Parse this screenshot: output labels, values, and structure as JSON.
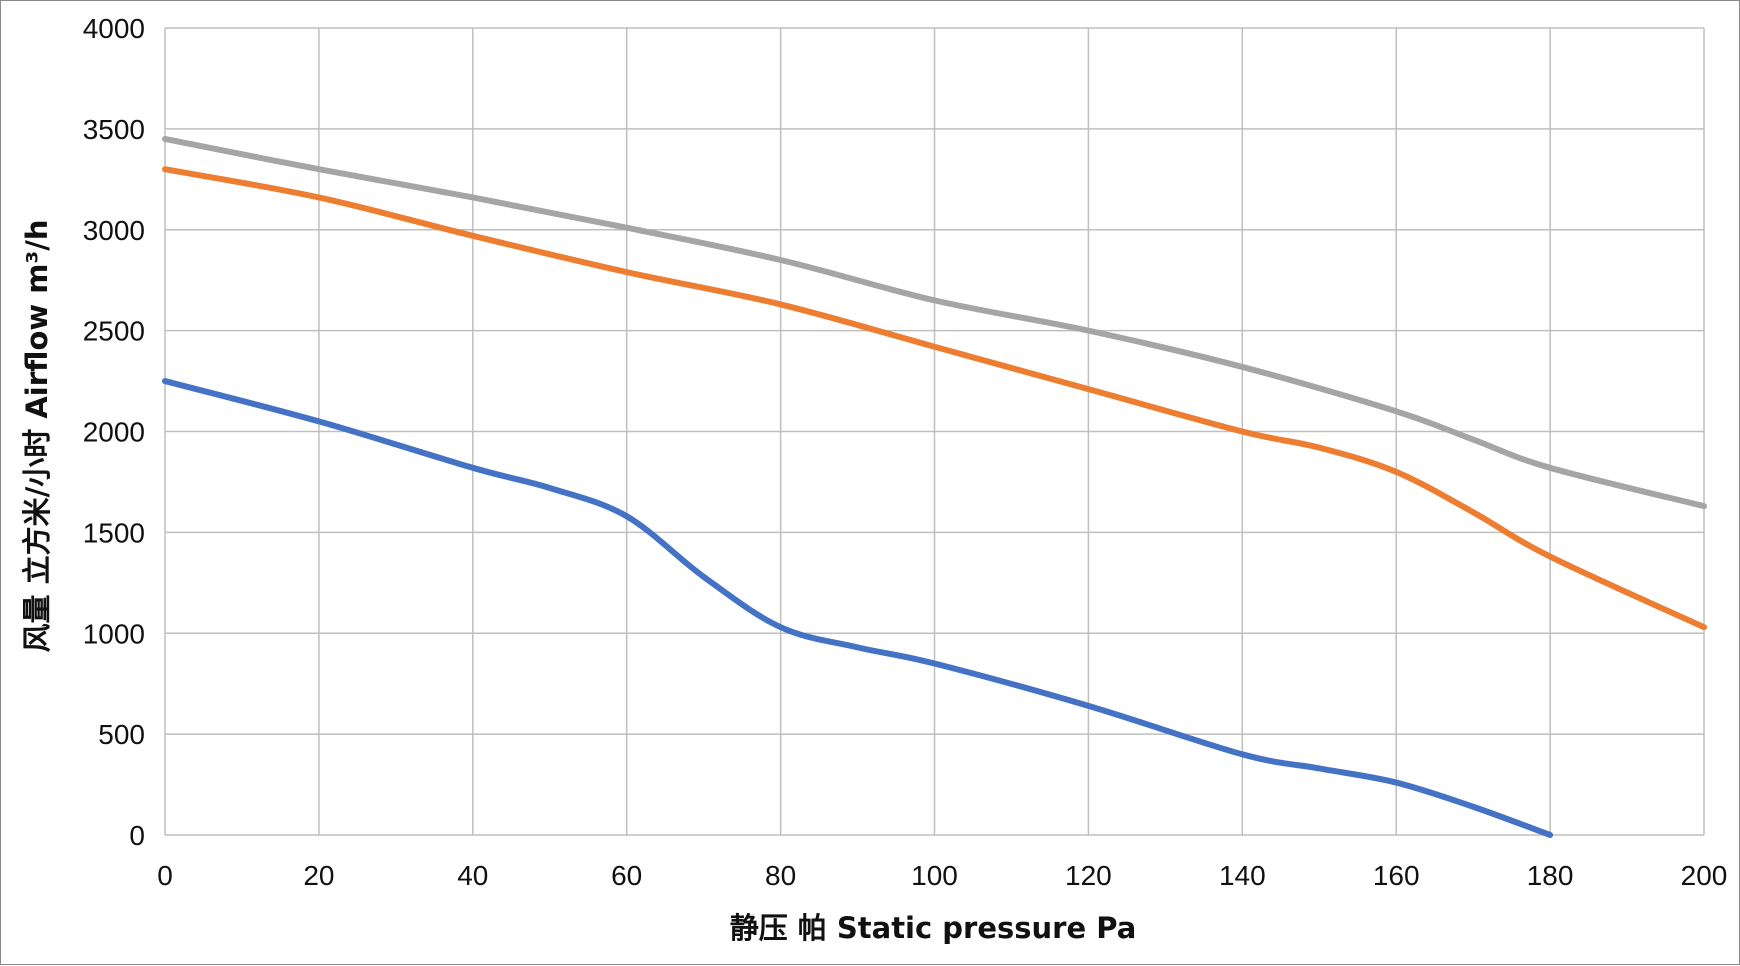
{
  "chart_data": {
    "type": "line",
    "title": "",
    "xlabel": "静压 帕 Static pressure Pa",
    "ylabel": "风量 立方米/小时 Airflow m³/h",
    "xlim": [
      0,
      200
    ],
    "ylim": [
      0,
      4000
    ],
    "xticks": [
      0,
      20,
      40,
      60,
      80,
      100,
      120,
      140,
      160,
      180,
      200
    ],
    "yticks": [
      0,
      500,
      1000,
      1500,
      2000,
      2500,
      3000,
      3500,
      4000
    ],
    "grid": true,
    "legend": "none",
    "series": [
      {
        "name": "blue",
        "color": "#4472C4",
        "x": [
          0,
          20,
          40,
          50,
          60,
          70,
          80,
          90,
          100,
          120,
          140,
          150,
          160,
          170,
          180
        ],
        "y": [
          2250,
          2050,
          1820,
          1720,
          1580,
          1280,
          1030,
          930,
          850,
          640,
          400,
          330,
          260,
          140,
          0
        ]
      },
      {
        "name": "orange",
        "color": "#ED7D31",
        "x": [
          0,
          20,
          40,
          60,
          80,
          100,
          120,
          140,
          150,
          160,
          170,
          180,
          200
        ],
        "y": [
          3300,
          3160,
          2970,
          2790,
          2630,
          2420,
          2210,
          2000,
          1920,
          1800,
          1600,
          1380,
          1030
        ]
      },
      {
        "name": "gray",
        "color": "#A5A5A5",
        "x": [
          0,
          20,
          40,
          60,
          80,
          100,
          120,
          140,
          160,
          170,
          180,
          200
        ],
        "y": [
          3450,
          3300,
          3160,
          3010,
          2850,
          2650,
          2500,
          2320,
          2100,
          1960,
          1820,
          1630
        ]
      }
    ]
  }
}
